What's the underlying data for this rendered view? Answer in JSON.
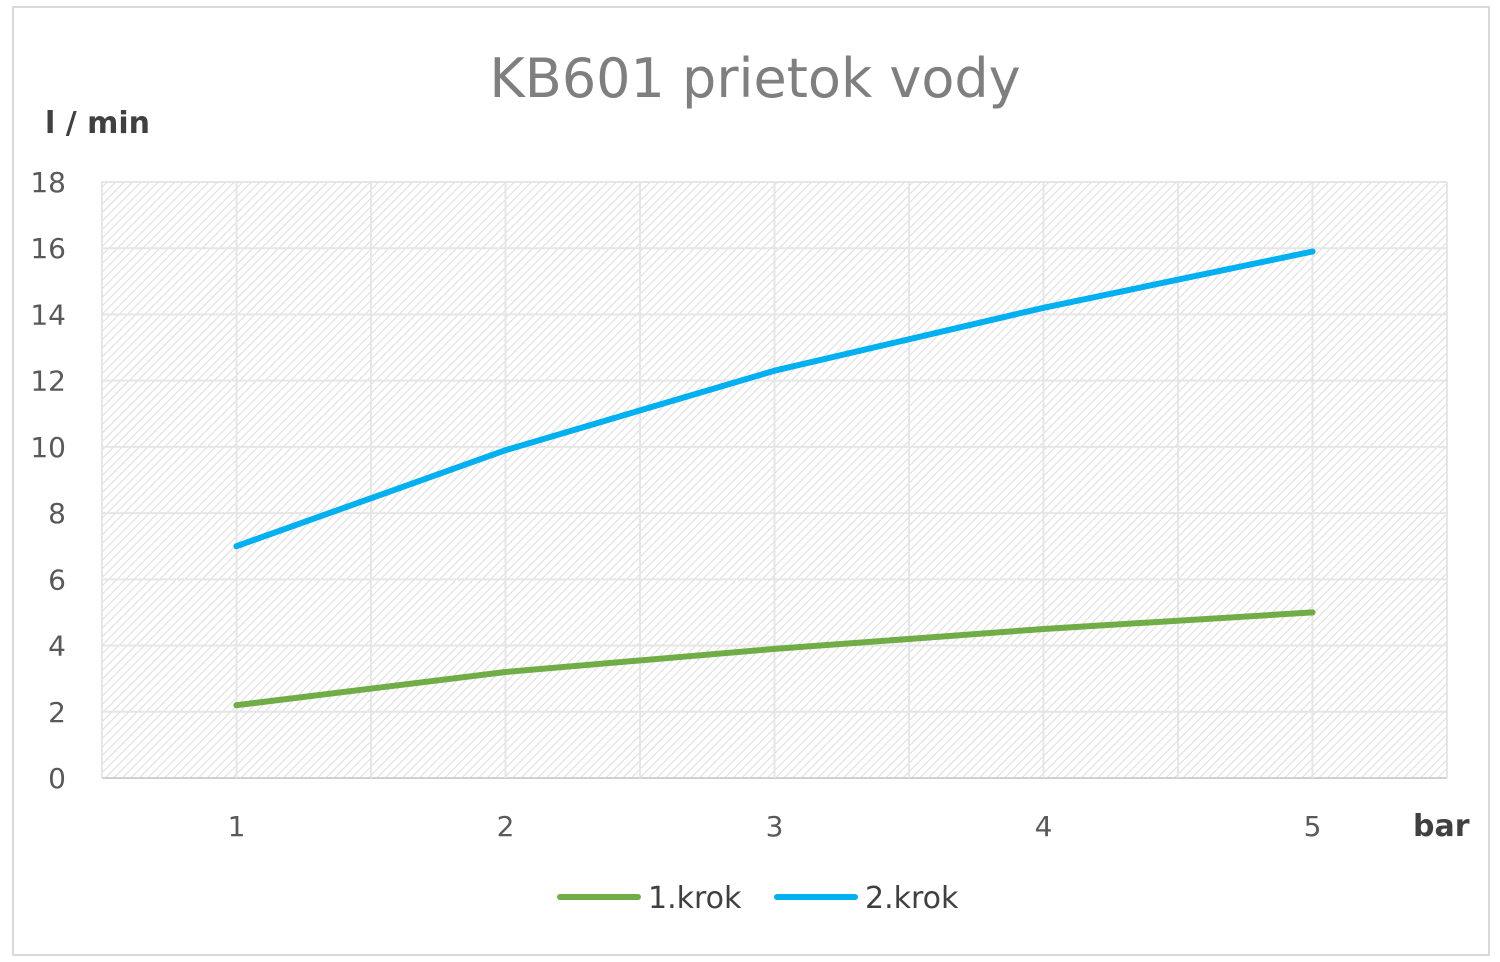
{
  "chart_data": {
    "type": "line",
    "title": "KB601 prietok vody",
    "ylabel": "l / min",
    "xlabel": "bar",
    "categories": [
      "1",
      "2",
      "3",
      "4",
      "5"
    ],
    "x": [
      1,
      2,
      3,
      4,
      5
    ],
    "ylim": [
      0,
      18
    ],
    "yticks": [
      "0",
      "2",
      "4",
      "6",
      "8",
      "10",
      "12",
      "14",
      "16",
      "18"
    ],
    "grid": true,
    "legend_position": "bottom",
    "series": [
      {
        "name": "1.krok",
        "color": "#70ad47",
        "values": [
          2.2,
          3.2,
          3.9,
          4.5,
          5.0
        ]
      },
      {
        "name": "2.krok",
        "color": "#00b0f0",
        "values": [
          7.0,
          9.9,
          12.3,
          14.2,
          15.9
        ]
      }
    ]
  }
}
